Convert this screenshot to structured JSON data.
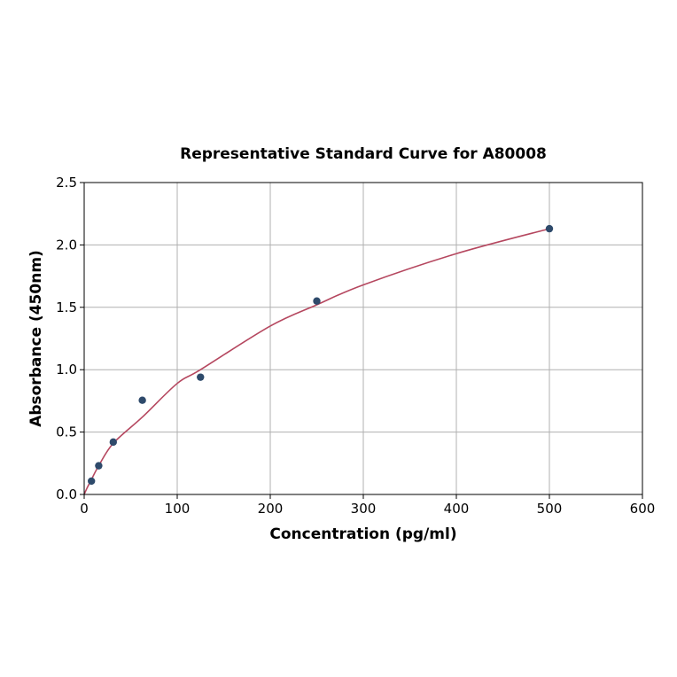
{
  "chart_data": {
    "type": "scatter",
    "title": "Representative Standard Curve for A80008",
    "xlabel": "Concentration (pg/ml)",
    "ylabel": "Absorbance (450nm)",
    "xlim": [
      0,
      600
    ],
    "ylim": [
      0,
      2.5
    ],
    "xticks": [
      "0",
      "100",
      "200",
      "300",
      "400",
      "500",
      "600"
    ],
    "yticks": [
      "0.0",
      "0.5",
      "1.0",
      "1.5",
      "2.0",
      "2.5"
    ],
    "grid": true,
    "points": {
      "x": [
        7.8125,
        15.625,
        31.25,
        62.5,
        125,
        250,
        500
      ],
      "y": [
        0.107,
        0.23,
        0.42,
        0.755,
        0.94,
        1.55,
        2.13
      ],
      "color": "#2e4a6b"
    },
    "fit_curve": {
      "x": [
        0,
        3,
        7.8125,
        15.625,
        31.25,
        62.5,
        100,
        125,
        200,
        250,
        300,
        400,
        500
      ],
      "y": [
        0,
        0.05,
        0.12,
        0.23,
        0.41,
        0.62,
        0.89,
        1.0,
        1.35,
        1.52,
        1.68,
        1.93,
        2.13
      ],
      "color": "#b5475f"
    }
  }
}
